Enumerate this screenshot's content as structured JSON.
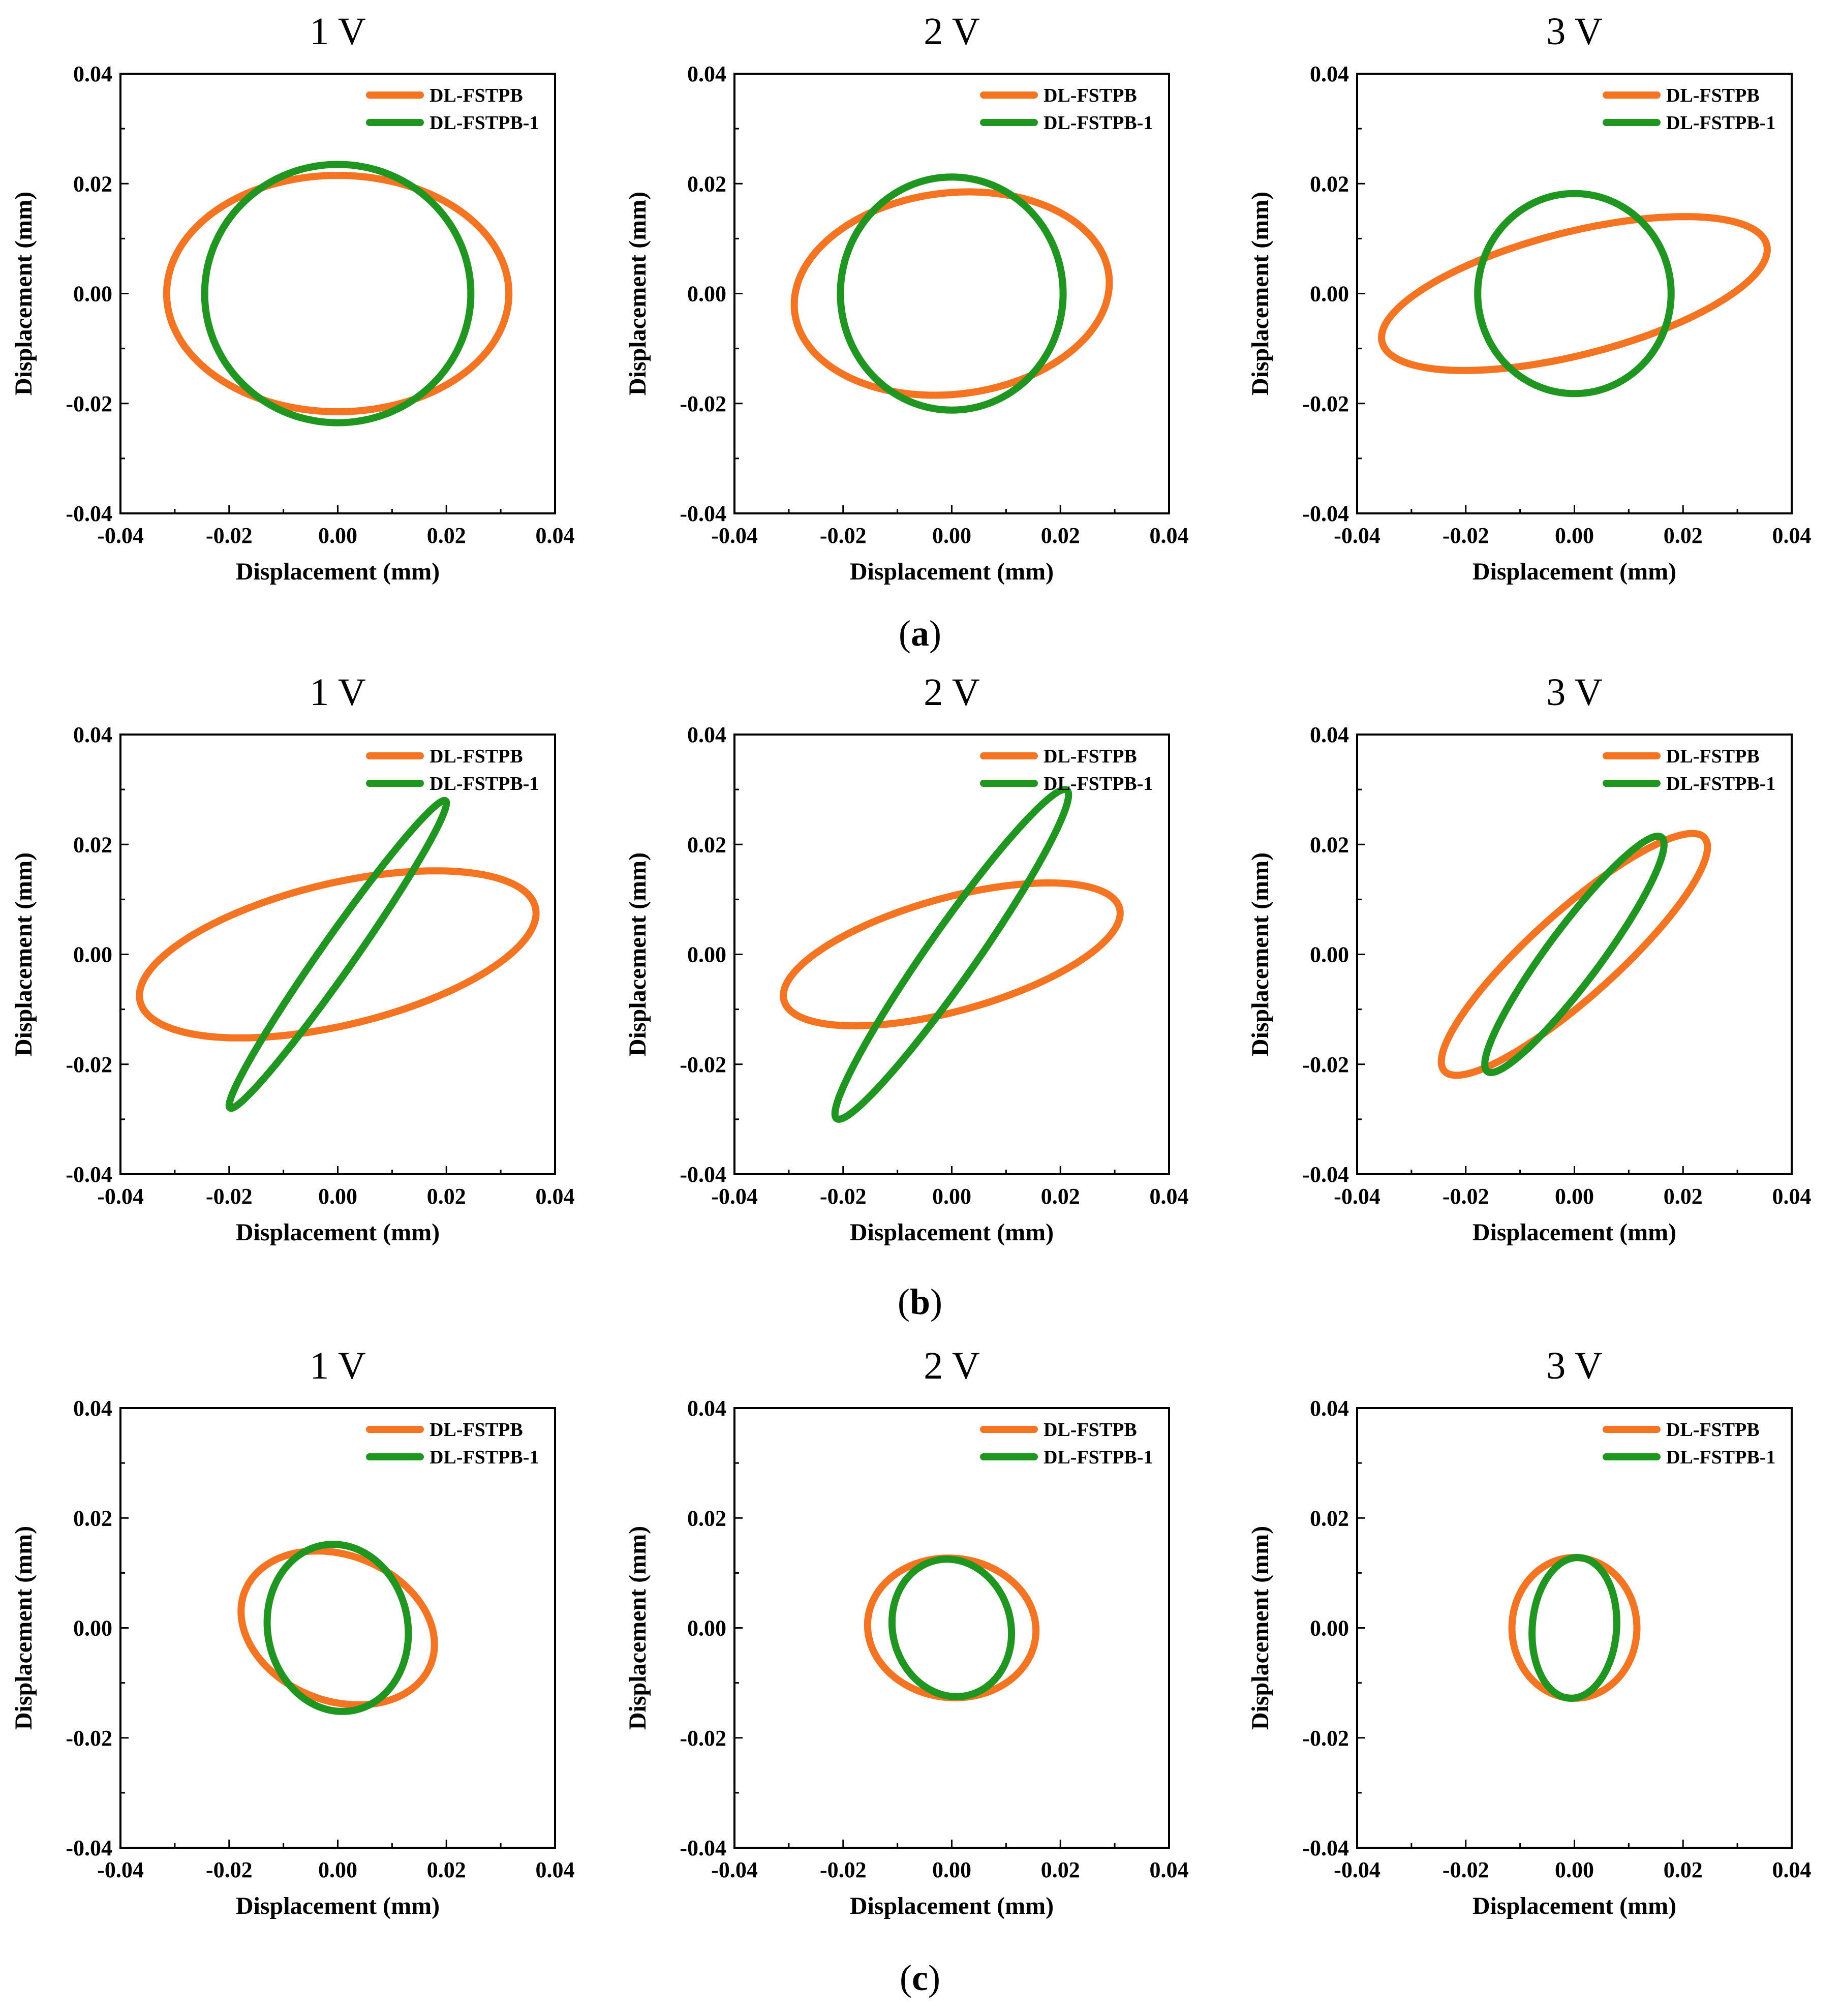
{
  "styles": {
    "orange": "#F47421",
    "green": "#1E9620",
    "axis_color": "#000000",
    "background": "#ffffff"
  },
  "captions": [
    {
      "letter": "a"
    },
    {
      "letter": "b"
    },
    {
      "letter": "c"
    }
  ],
  "chart_data": [
    {
      "type": "line",
      "title": "1 V",
      "xlabel": "Displacement (mm)",
      "ylabel": "Displacement (mm)",
      "xlim": [
        -0.04,
        0.04
      ],
      "ylim": [
        -0.04,
        0.04
      ],
      "xticks": [
        "-0.04",
        "-0.02",
        "0.00",
        "0.02",
        "0.04"
      ],
      "yticks": [
        "-0.04",
        "-0.02",
        "0.00",
        "0.02",
        "0.04"
      ],
      "grid": false,
      "legend_position": "top-right",
      "series": [
        {
          "name": "DL-FSTPB",
          "color": "#F47421",
          "shape": "ellipse",
          "center": [
            0.0,
            0.0
          ],
          "x_amplitude": 0.0315,
          "y_amplitude": 0.0215,
          "y_at_x_extreme": 0.0
        },
        {
          "name": "DL-FSTPB-1",
          "color": "#1E9620",
          "shape": "ellipse",
          "center": [
            0.0,
            0.0
          ],
          "x_amplitude": 0.0245,
          "y_amplitude": 0.0235,
          "y_at_x_extreme": 0.0
        }
      ]
    },
    {
      "type": "line",
      "title": "2 V",
      "xlabel": "Displacement (mm)",
      "ylabel": "Displacement (mm)",
      "xlim": [
        -0.04,
        0.04
      ],
      "ylim": [
        -0.04,
        0.04
      ],
      "xticks": [
        "-0.04",
        "-0.02",
        "0.00",
        "0.02",
        "0.04"
      ],
      "yticks": [
        "-0.04",
        "-0.02",
        "0.00",
        "0.02",
        "0.04"
      ],
      "grid": false,
      "legend_position": "top-right",
      "series": [
        {
          "name": "DL-FSTPB",
          "color": "#F47421",
          "shape": "ellipse",
          "center": [
            0.0,
            0.0
          ],
          "x_amplitude": 0.029,
          "y_amplitude": 0.0185,
          "y_at_x_extreme": 0.002
        },
        {
          "name": "DL-FSTPB-1",
          "color": "#1E9620",
          "shape": "ellipse",
          "center": [
            0.0,
            0.0
          ],
          "x_amplitude": 0.0205,
          "y_amplitude": 0.0212,
          "y_at_x_extreme": 0.0
        }
      ]
    },
    {
      "type": "line",
      "title": "3 V",
      "xlabel": "Displacement (mm)",
      "ylabel": "Displacement (mm)",
      "xlim": [
        -0.04,
        0.04
      ],
      "ylim": [
        -0.04,
        0.04
      ],
      "xticks": [
        "-0.04",
        "-0.02",
        "0.00",
        "0.02",
        "0.04"
      ],
      "yticks": [
        "-0.04",
        "-0.02",
        "0.00",
        "0.02",
        "0.04"
      ],
      "grid": false,
      "legend_position": "top-right",
      "series": [
        {
          "name": "DL-FSTPB",
          "color": "#F47421",
          "shape": "ellipse",
          "center": [
            0.0,
            0.0
          ],
          "x_amplitude": 0.0355,
          "y_amplitude": 0.014,
          "y_at_x_extreme": 0.008
        },
        {
          "name": "DL-FSTPB-1",
          "color": "#1E9620",
          "shape": "ellipse",
          "center": [
            0.0,
            0.0
          ],
          "x_amplitude": 0.0178,
          "y_amplitude": 0.0182,
          "y_at_x_extreme": 0.0
        }
      ]
    },
    {
      "type": "line",
      "title": "1 V",
      "xlabel": "Displacement (mm)",
      "ylabel": "Displacement (mm)",
      "xlim": [
        -0.04,
        0.04
      ],
      "ylim": [
        -0.04,
        0.04
      ],
      "xticks": [
        "-0.04",
        "-0.02",
        "0.00",
        "0.02",
        "0.04"
      ],
      "yticks": [
        "-0.04",
        "-0.02",
        "0.00",
        "0.02",
        "0.04"
      ],
      "grid": false,
      "legend_position": "top-right",
      "series": [
        {
          "name": "DL-FSTPB",
          "color": "#F47421",
          "shape": "ellipse",
          "center": [
            0.0,
            0.0
          ],
          "x_amplitude": 0.0365,
          "y_amplitude": 0.0152,
          "y_at_x_extreme": 0.0075
        },
        {
          "name": "DL-FSTPB-1",
          "color": "#1E9620",
          "shape": "ellipse",
          "center": [
            0.0,
            0.0
          ],
          "x_amplitude": 0.02,
          "y_amplitude": 0.028,
          "y_at_x_extreme": 0.0275
        }
      ]
    },
    {
      "type": "line",
      "title": "2 V",
      "xlabel": "Displacement (mm)",
      "ylabel": "Displacement (mm)",
      "xlim": [
        -0.04,
        0.04
      ],
      "ylim": [
        -0.04,
        0.04
      ],
      "xticks": [
        "-0.04",
        "-0.02",
        "0.00",
        "0.02",
        "0.04"
      ],
      "yticks": [
        "-0.04",
        "-0.02",
        "0.00",
        "0.02",
        "0.04"
      ],
      "grid": false,
      "legend_position": "top-right",
      "series": [
        {
          "name": "DL-FSTPB",
          "color": "#F47421",
          "shape": "ellipse",
          "center": [
            0.0,
            0.0
          ],
          "x_amplitude": 0.031,
          "y_amplitude": 0.013,
          "y_at_x_extreme": 0.0075
        },
        {
          "name": "DL-FSTPB-1",
          "color": "#1E9620",
          "shape": "ellipse",
          "center": [
            0.0,
            0.0
          ],
          "x_amplitude": 0.0215,
          "y_amplitude": 0.03,
          "y_at_x_extreme": 0.029
        }
      ]
    },
    {
      "type": "line",
      "title": "3 V",
      "xlabel": "Displacement (mm)",
      "ylabel": "Displacement (mm)",
      "xlim": [
        -0.04,
        0.04
      ],
      "ylim": [
        -0.04,
        0.04
      ],
      "xticks": [
        "-0.04",
        "-0.02",
        "0.00",
        "0.02",
        "0.04"
      ],
      "yticks": [
        "-0.04",
        "-0.02",
        "0.00",
        "0.02",
        "0.04"
      ],
      "grid": false,
      "legend_position": "top-right",
      "series": [
        {
          "name": "DL-FSTPB",
          "color": "#F47421",
          "shape": "ellipse",
          "center": [
            0.0,
            0.0
          ],
          "x_amplitude": 0.0245,
          "y_amplitude": 0.022,
          "y_at_x_extreme": 0.0195
        },
        {
          "name": "DL-FSTPB-1",
          "color": "#1E9620",
          "shape": "ellipse",
          "center": [
            0.0,
            0.0
          ],
          "x_amplitude": 0.0165,
          "y_amplitude": 0.0215,
          "y_at_x_extreme": 0.02
        }
      ]
    },
    {
      "type": "line",
      "title": "1 V",
      "xlabel": "Displacement (mm)",
      "ylabel": "Displacement (mm)",
      "xlim": [
        -0.04,
        0.04
      ],
      "ylim": [
        -0.04,
        0.04
      ],
      "xticks": [
        "-0.04",
        "-0.02",
        "0.00",
        "0.02",
        "0.04"
      ],
      "yticks": [
        "-0.04",
        "-0.02",
        "0.00",
        "0.02",
        "0.04"
      ],
      "grid": false,
      "legend_position": "top-right",
      "series": [
        {
          "name": "DL-FSTPB",
          "color": "#F47421",
          "shape": "ellipse",
          "center": [
            0.0,
            0.0
          ],
          "x_amplitude": 0.0178,
          "y_amplitude": 0.014,
          "y_at_x_extreme": -0.003
        },
        {
          "name": "DL-FSTPB-1",
          "color": "#1E9620",
          "shape": "ellipse",
          "center": [
            0.0,
            0.0
          ],
          "x_amplitude": 0.013,
          "y_amplitude": 0.0152,
          "y_at_x_extreme": -0.001
        }
      ]
    },
    {
      "type": "line",
      "title": "2 V",
      "xlabel": "Displacement (mm)",
      "ylabel": "Displacement (mm)",
      "xlim": [
        -0.04,
        0.04
      ],
      "ylim": [
        -0.04,
        0.04
      ],
      "xticks": [
        "-0.04",
        "-0.02",
        "0.00",
        "0.02",
        "0.04"
      ],
      "yticks": [
        "-0.04",
        "-0.02",
        "0.00",
        "0.02",
        "0.04"
      ],
      "grid": false,
      "legend_position": "top-right",
      "series": [
        {
          "name": "DL-FSTPB",
          "color": "#F47421",
          "shape": "ellipse",
          "center": [
            0.0,
            0.0
          ],
          "x_amplitude": 0.0155,
          "y_amplitude": 0.0127,
          "y_at_x_extreme": -0.0005
        },
        {
          "name": "DL-FSTPB-1",
          "color": "#1E9620",
          "shape": "ellipse",
          "center": [
            0.0,
            0.0
          ],
          "x_amplitude": 0.011,
          "y_amplitude": 0.0125,
          "y_at_x_extreme": -0.001
        }
      ]
    },
    {
      "type": "line",
      "title": "3 V",
      "xlabel": "Displacement (mm)",
      "ylabel": "Displacement (mm)",
      "xlim": [
        -0.04,
        0.04
      ],
      "ylim": [
        -0.04,
        0.04
      ],
      "xticks": [
        "-0.04",
        "-0.02",
        "0.00",
        "0.02",
        "0.04"
      ],
      "yticks": [
        "-0.04",
        "-0.02",
        "0.00",
        "0.02",
        "0.04"
      ],
      "grid": false,
      "legend_position": "top-right",
      "series": [
        {
          "name": "DL-FSTPB",
          "color": "#F47421",
          "shape": "ellipse",
          "center": [
            0.0,
            0.0
          ],
          "x_amplitude": 0.0115,
          "y_amplitude": 0.0128,
          "y_at_x_extreme": 0.0
        },
        {
          "name": "DL-FSTPB-1",
          "color": "#1E9620",
          "shape": "ellipse",
          "center": [
            0.0,
            0.0
          ],
          "x_amplitude": 0.0078,
          "y_amplitude": 0.0128,
          "y_at_x_extreme": 0.001
        }
      ]
    }
  ]
}
